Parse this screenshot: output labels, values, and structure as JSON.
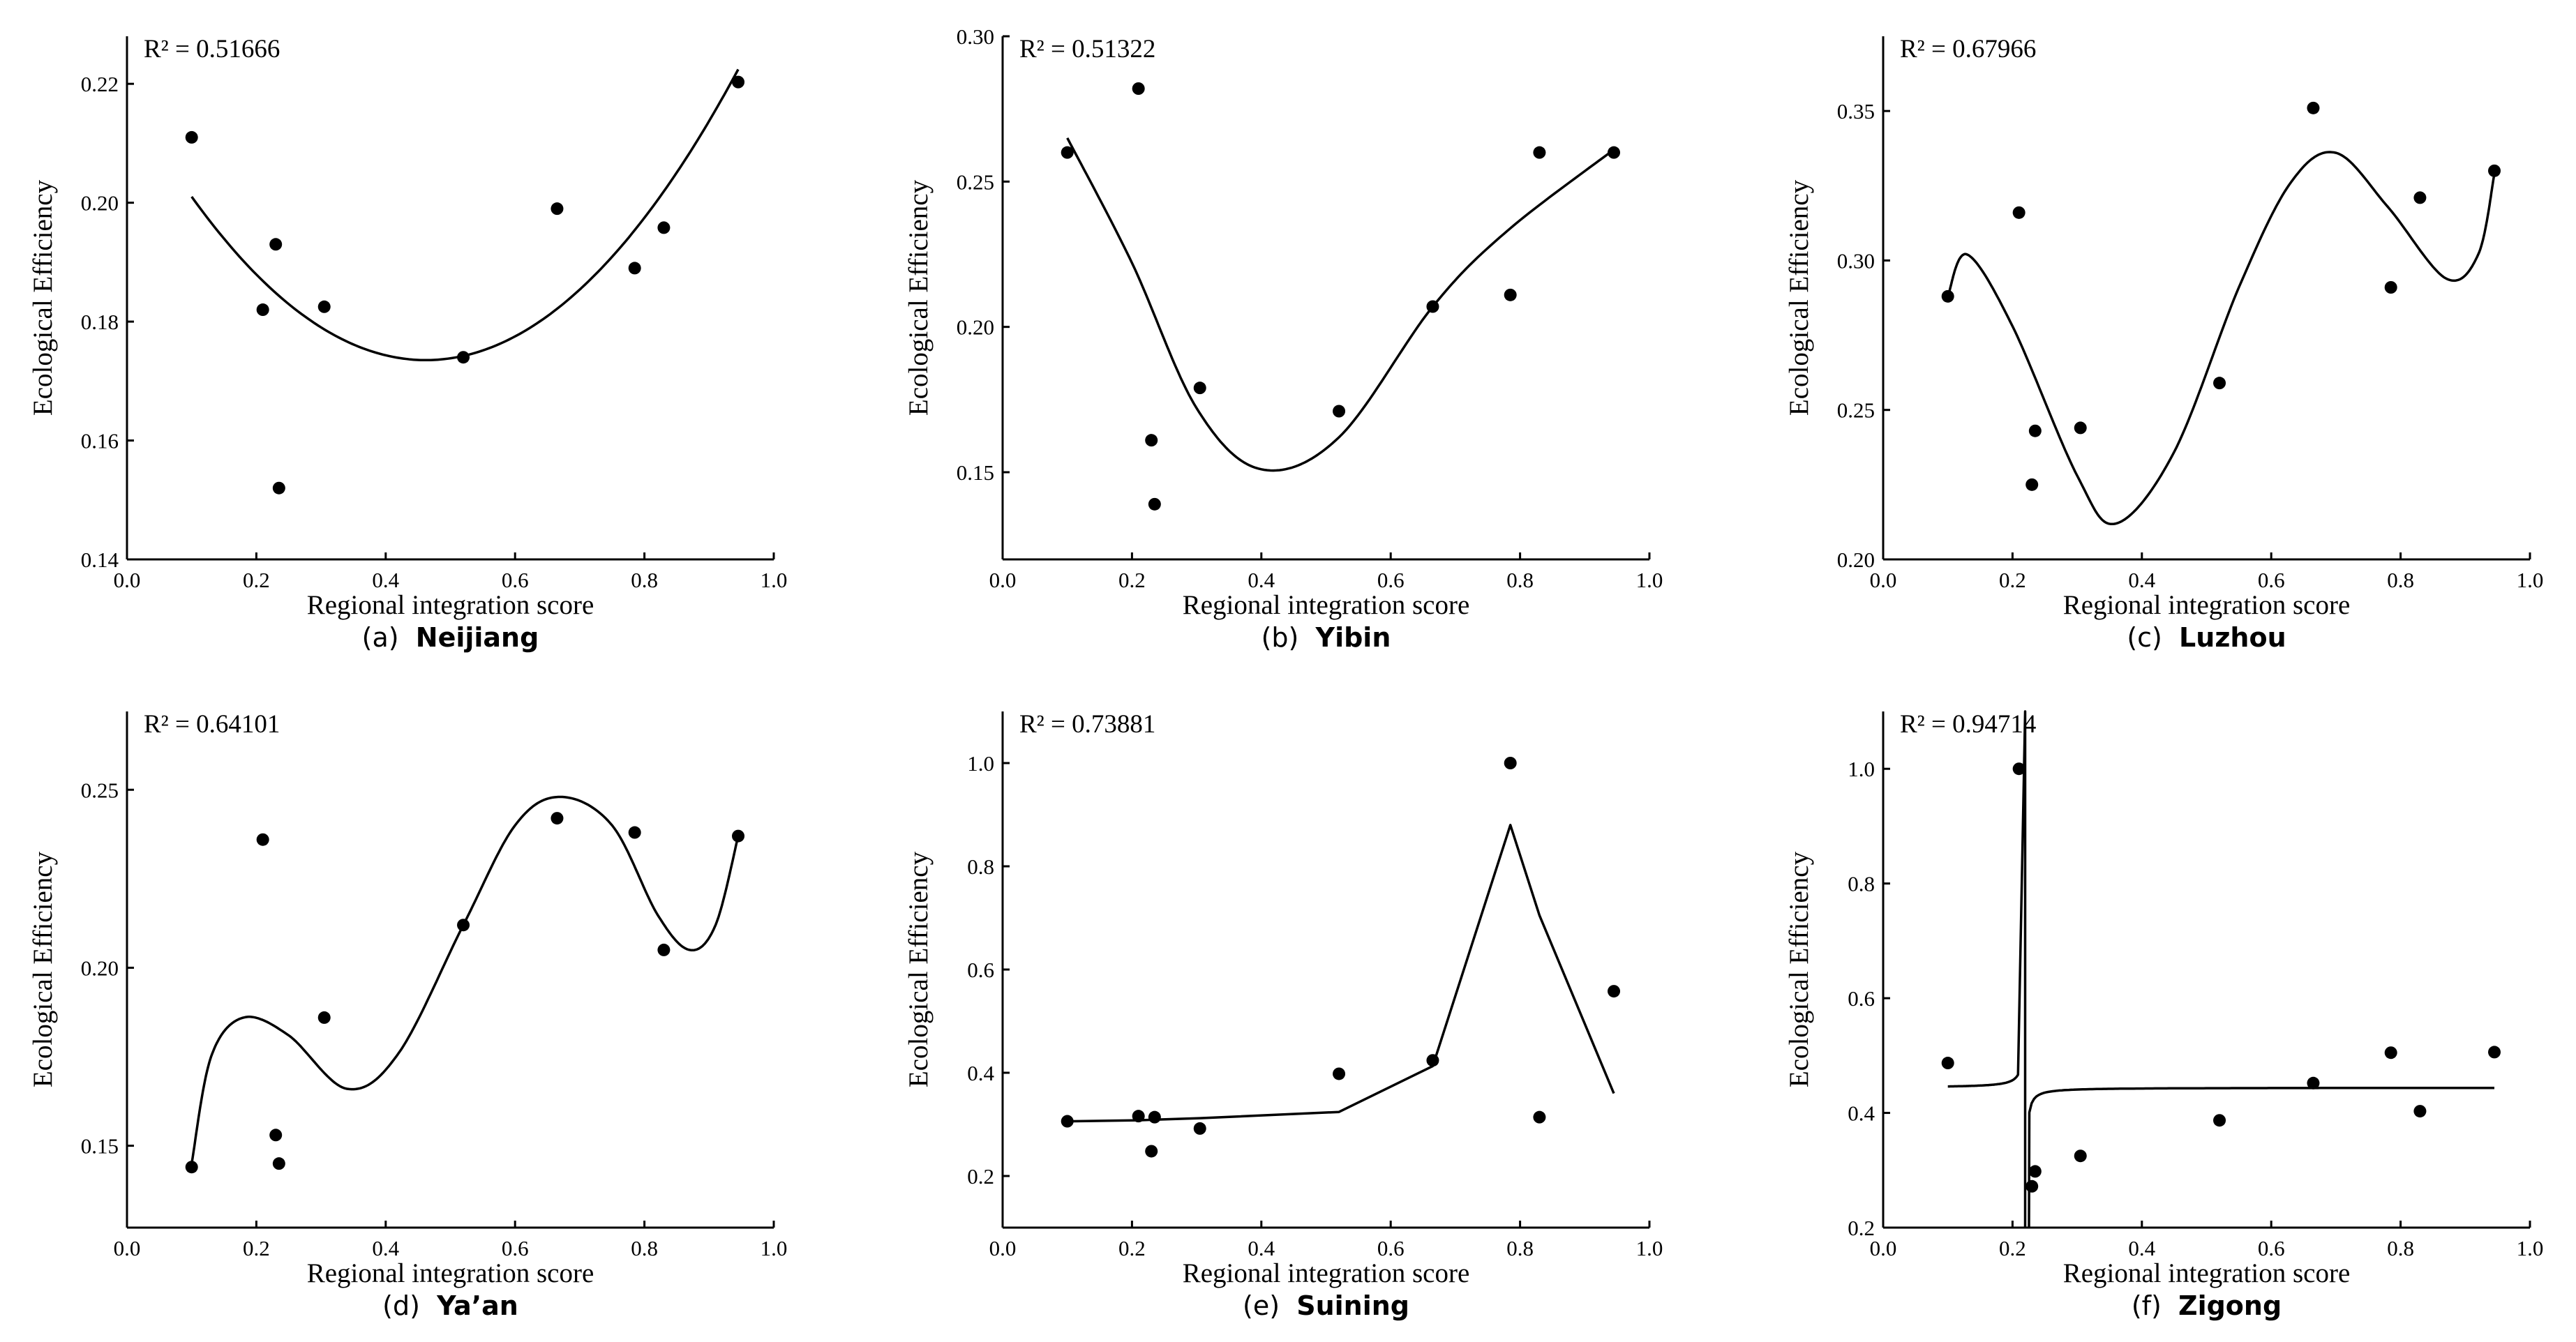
{
  "chart_data": [
    {
      "type": "scatter",
      "panel": "a",
      "caption_letter": "(a)",
      "caption_name": "Neijiang",
      "r2_prefix": "R² = ",
      "r2_value": "0.51666",
      "xlabel": "Regional integration score",
      "ylabel": "Ecological Efficiency",
      "xlim": [
        0.0,
        1.0
      ],
      "ylim": [
        0.14,
        0.228
      ],
      "xticks": [
        0.0,
        0.2,
        0.4,
        0.6,
        0.8,
        1.0
      ],
      "xtick_labels": [
        "0.0",
        "0.2",
        "0.4",
        "0.6",
        "0.8",
        "1.0"
      ],
      "yticks": [
        0.14,
        0.16,
        0.18,
        0.2,
        0.22
      ],
      "ytick_labels": [
        "0.14",
        "0.16",
        "0.18",
        "0.20",
        "0.22"
      ],
      "points": [
        [
          0.1,
          0.211
        ],
        [
          0.21,
          0.182
        ],
        [
          0.23,
          0.193
        ],
        [
          0.235,
          0.152
        ],
        [
          0.305,
          0.1825
        ],
        [
          0.52,
          0.174
        ],
        [
          0.665,
          0.199
        ],
        [
          0.785,
          0.189
        ],
        [
          0.83,
          0.1958
        ],
        [
          0.945,
          0.2203
        ]
      ],
      "fit": {
        "kind": "polynomial",
        "coeffs": [
          0.2183,
          -0.1938,
          0.2097
        ],
        "xrange": [
          0.1,
          0.945
        ]
      }
    },
    {
      "type": "scatter",
      "panel": "b",
      "caption_letter": "(b)",
      "caption_name": "Yibin",
      "r2_prefix": "R² = ",
      "r2_value": "0.51322",
      "xlabel": "Regional integration score",
      "ylabel": "Ecological Efficiency",
      "xlim": [
        0.0,
        1.0
      ],
      "ylim": [
        0.12,
        0.3
      ],
      "xticks": [
        0.0,
        0.2,
        0.4,
        0.6,
        0.8,
        1.0
      ],
      "xtick_labels": [
        "0.0",
        "0.2",
        "0.4",
        "0.6",
        "0.8",
        "1.0"
      ],
      "yticks": [
        0.15,
        0.2,
        0.25,
        0.3
      ],
      "ytick_labels": [
        "0.15",
        "0.20",
        "0.25",
        "0.30"
      ],
      "points": [
        [
          0.1,
          0.26
        ],
        [
          0.21,
          0.282
        ],
        [
          0.23,
          0.161
        ],
        [
          0.235,
          0.139
        ],
        [
          0.305,
          0.179
        ],
        [
          0.52,
          0.171
        ],
        [
          0.665,
          0.207
        ],
        [
          0.785,
          0.211
        ],
        [
          0.83,
          0.26
        ],
        [
          0.945,
          0.26
        ]
      ],
      "fit": {
        "kind": "spline",
        "knots": [
          [
            0.1,
            0.265
          ],
          [
            0.2,
            0.222
          ],
          [
            0.3,
            0.172
          ],
          [
            0.4,
            0.151
          ],
          [
            0.52,
            0.162
          ],
          [
            0.665,
            0.207
          ],
          [
            0.78,
            0.233
          ],
          [
            0.945,
            0.261
          ]
        ]
      }
    },
    {
      "type": "scatter",
      "panel": "c",
      "caption_letter": "(c)",
      "caption_name": "Luzhou",
      "r2_prefix": "R² = ",
      "r2_value": "0.67966",
      "xlabel": "Regional integration score",
      "ylabel": "Ecological Efficiency",
      "xlim": [
        0.0,
        1.0
      ],
      "ylim": [
        0.2,
        0.375
      ],
      "xticks": [
        0.0,
        0.2,
        0.4,
        0.6,
        0.8,
        1.0
      ],
      "xtick_labels": [
        "0.0",
        "0.2",
        "0.4",
        "0.6",
        "0.8",
        "1.0"
      ],
      "yticks": [
        0.2,
        0.25,
        0.3,
        0.35
      ],
      "ytick_labels": [
        "0.20",
        "0.25",
        "0.30",
        "0.35"
      ],
      "points": [
        [
          0.1,
          0.288
        ],
        [
          0.21,
          0.316
        ],
        [
          0.23,
          0.225
        ],
        [
          0.235,
          0.243
        ],
        [
          0.305,
          0.244
        ],
        [
          0.52,
          0.259
        ],
        [
          0.665,
          0.351
        ],
        [
          0.785,
          0.291
        ],
        [
          0.83,
          0.321
        ],
        [
          0.945,
          0.33
        ]
      ],
      "fit": {
        "kind": "spline",
        "knots": [
          [
            0.1,
            0.288
          ],
          [
            0.13,
            0.302
          ],
          [
            0.2,
            0.278
          ],
          [
            0.3,
            0.228
          ],
          [
            0.36,
            0.212
          ],
          [
            0.45,
            0.236
          ],
          [
            0.55,
            0.291
          ],
          [
            0.63,
            0.326
          ],
          [
            0.7,
            0.336
          ],
          [
            0.78,
            0.318
          ],
          [
            0.87,
            0.294
          ],
          [
            0.92,
            0.302
          ],
          [
            0.945,
            0.329
          ]
        ]
      }
    },
    {
      "type": "scatter",
      "panel": "d",
      "caption_letter": "(d)",
      "caption_name": "Ya’an",
      "r2_prefix": "R² = ",
      "r2_value": "0.64101",
      "xlabel": "Regional integration score",
      "ylabel": "Ecological Efficiency",
      "xlim": [
        0.0,
        1.0
      ],
      "ylim": [
        0.127,
        0.272
      ],
      "xticks": [
        0.0,
        0.2,
        0.4,
        0.6,
        0.8,
        1.0
      ],
      "xtick_labels": [
        "0.0",
        "0.2",
        "0.4",
        "0.6",
        "0.8",
        "1.0"
      ],
      "yticks": [
        0.15,
        0.2,
        0.25
      ],
      "ytick_labels": [
        "0.15",
        "0.20",
        "0.25"
      ],
      "points": [
        [
          0.1,
          0.144
        ],
        [
          0.21,
          0.236
        ],
        [
          0.23,
          0.153
        ],
        [
          0.235,
          0.145
        ],
        [
          0.305,
          0.186
        ],
        [
          0.52,
          0.212
        ],
        [
          0.665,
          0.242
        ],
        [
          0.785,
          0.238
        ],
        [
          0.83,
          0.205
        ],
        [
          0.945,
          0.237
        ]
      ],
      "fit": {
        "kind": "spline",
        "knots": [
          [
            0.1,
            0.145
          ],
          [
            0.13,
            0.175
          ],
          [
            0.18,
            0.186
          ],
          [
            0.25,
            0.181
          ],
          [
            0.34,
            0.166
          ],
          [
            0.42,
            0.176
          ],
          [
            0.52,
            0.212
          ],
          [
            0.6,
            0.24
          ],
          [
            0.67,
            0.248
          ],
          [
            0.75,
            0.24
          ],
          [
            0.82,
            0.215
          ],
          [
            0.87,
            0.205
          ],
          [
            0.91,
            0.212
          ],
          [
            0.945,
            0.237
          ]
        ]
      }
    },
    {
      "type": "scatter",
      "panel": "e",
      "caption_letter": "(e)",
      "caption_name": "Suining",
      "r2_prefix": "R² = ",
      "r2_value": "0.73881",
      "xlabel": "Regional integration score",
      "ylabel": "Ecological Efficiency",
      "xlim": [
        0.0,
        1.0
      ],
      "ylim": [
        0.1,
        1.1
      ],
      "xticks": [
        0.0,
        0.2,
        0.4,
        0.6,
        0.8,
        1.0
      ],
      "xtick_labels": [
        "0.0",
        "0.2",
        "0.4",
        "0.6",
        "0.8",
        "1.0"
      ],
      "yticks": [
        0.2,
        0.4,
        0.6,
        0.8,
        1.0
      ],
      "ytick_labels": [
        "0.2",
        "0.4",
        "0.6",
        "0.8",
        "1.0"
      ],
      "points": [
        [
          0.1,
          0.306
        ],
        [
          0.21,
          0.316
        ],
        [
          0.23,
          0.248
        ],
        [
          0.235,
          0.314
        ],
        [
          0.305,
          0.292
        ],
        [
          0.52,
          0.398
        ],
        [
          0.665,
          0.424
        ],
        [
          0.785,
          1.0
        ],
        [
          0.83,
          0.314
        ],
        [
          0.945,
          0.558
        ]
      ],
      "fit": {
        "kind": "polyline",
        "knots": [
          [
            0.1,
            0.306
          ],
          [
            0.21,
            0.308
          ],
          [
            0.235,
            0.309
          ],
          [
            0.305,
            0.312
          ],
          [
            0.52,
            0.324
          ],
          [
            0.665,
            0.413
          ],
          [
            0.785,
            0.88
          ],
          [
            0.83,
            0.705
          ],
          [
            0.945,
            0.36
          ]
        ]
      }
    },
    {
      "type": "scatter",
      "panel": "f",
      "caption_letter": "(f)",
      "caption_name": "Zigong",
      "r2_prefix": "R² = ",
      "r2_value": "0.94714",
      "xlabel": "Regional integration score",
      "ylabel": "Ecological Efficiency",
      "xlim": [
        0.0,
        1.0
      ],
      "ylim": [
        0.2,
        1.1
      ],
      "xticks": [
        0.0,
        0.2,
        0.4,
        0.6,
        0.8,
        1.0
      ],
      "xtick_labels": [
        "0.0",
        "0.2",
        "0.4",
        "0.6",
        "0.8",
        "1.0"
      ],
      "yticks": [
        0.2,
        0.4,
        0.6,
        0.8,
        1.0
      ],
      "ytick_labels": [
        "0.2",
        "0.4",
        "0.6",
        "0.8",
        "1.0"
      ],
      "points": [
        [
          0.1,
          0.487
        ],
        [
          0.21,
          1.0
        ],
        [
          0.23,
          0.272
        ],
        [
          0.235,
          0.298
        ],
        [
          0.305,
          0.325
        ],
        [
          0.52,
          0.387
        ],
        [
          0.665,
          0.452
        ],
        [
          0.785,
          0.505
        ],
        [
          0.83,
          0.403
        ],
        [
          0.945,
          0.506
        ]
      ],
      "fit": {
        "kind": "rational",
        "c": 0.444,
        "k": 0.00026,
        "asymptote_x": 0.22,
        "left_range": [
          0.1,
          0.2085
        ],
        "right_range": [
          0.226,
          0.945
        ]
      }
    }
  ]
}
